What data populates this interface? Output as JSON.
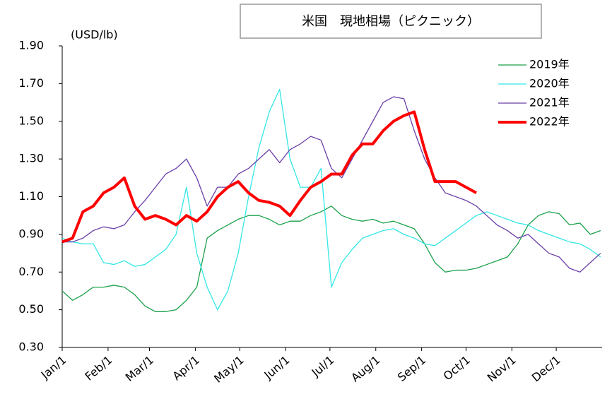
{
  "chart_data": {
    "type": "line",
    "title": "米国　現地相場（ピクニック）",
    "y_label": "(USD/lb)",
    "x": [
      0,
      7,
      14,
      21,
      28,
      35,
      42,
      49,
      56,
      63,
      70,
      77,
      84,
      91,
      98,
      105,
      112,
      119,
      126,
      133,
      140,
      147,
      154,
      161,
      168,
      175,
      182,
      189,
      196,
      203,
      210,
      217,
      224,
      231,
      238,
      245,
      252,
      259,
      266,
      273,
      280,
      287,
      294,
      301,
      308,
      315,
      322,
      329,
      336,
      343,
      350,
      357,
      364
    ],
    "xlim": [
      0,
      365
    ],
    "xticks": [
      {
        "value": 0,
        "label": "Jan/1"
      },
      {
        "value": 31,
        "label": "Feb/1"
      },
      {
        "value": 59,
        "label": "Mar/1"
      },
      {
        "value": 90,
        "label": "Apr/1"
      },
      {
        "value": 120,
        "label": "May/1"
      },
      {
        "value": 151,
        "label": "Jun/1"
      },
      {
        "value": 181,
        "label": "Jul/1"
      },
      {
        "value": 212,
        "label": "Aug/1"
      },
      {
        "value": 243,
        "label": "Sep/1"
      },
      {
        "value": 273,
        "label": "Oct/1"
      },
      {
        "value": 304,
        "label": "Nov/1"
      },
      {
        "value": 334,
        "label": "Dec/1"
      }
    ],
    "ylim": [
      0.3,
      1.9
    ],
    "yticks": [
      {
        "value": 0.3,
        "label": "0.30"
      },
      {
        "value": 0.5,
        "label": "0.50"
      },
      {
        "value": 0.7,
        "label": "0.70"
      },
      {
        "value": 0.9,
        "label": "0.90"
      },
      {
        "value": 1.1,
        "label": "1.10"
      },
      {
        "value": 1.3,
        "label": "1.30"
      },
      {
        "value": 1.5,
        "label": "1.50"
      },
      {
        "value": 1.7,
        "label": "1.70"
      },
      {
        "value": 1.9,
        "label": "1.90"
      }
    ],
    "grid": false,
    "legend": "upper right",
    "series": [
      {
        "name": "2019年",
        "color": "#1aa04a",
        "width": 1.3,
        "values": [
          0.6,
          0.55,
          0.58,
          0.62,
          0.62,
          0.63,
          0.62,
          0.58,
          0.52,
          0.49,
          0.49,
          0.5,
          0.55,
          0.62,
          0.88,
          0.92,
          0.95,
          0.98,
          1.0,
          1.0,
          0.98,
          0.95,
          0.97,
          0.97,
          1.0,
          1.02,
          1.05,
          1.0,
          0.98,
          0.97,
          0.98,
          0.96,
          0.97,
          0.95,
          0.93,
          0.85,
          0.75,
          0.7,
          0.71,
          0.71,
          0.72,
          0.74,
          0.76,
          0.78,
          0.85,
          0.95,
          1.0,
          1.02,
          1.01,
          0.95,
          0.96,
          0.9,
          0.92
        ]
      },
      {
        "name": "2020年",
        "color": "#33e6e6",
        "width": 1.3,
        "values": [
          0.88,
          0.86,
          0.85,
          0.85,
          0.75,
          0.74,
          0.76,
          0.73,
          0.74,
          0.78,
          0.82,
          0.9,
          1.15,
          0.8,
          0.62,
          0.5,
          0.6,
          0.8,
          1.1,
          1.36,
          1.55,
          1.67,
          1.3,
          1.15,
          1.15,
          1.25,
          0.62,
          0.75,
          0.82,
          0.88,
          0.9,
          0.92,
          0.93,
          0.9,
          0.88,
          0.85,
          0.84,
          0.88,
          0.92,
          0.96,
          1.0,
          1.02,
          1.0,
          0.98,
          0.96,
          0.95,
          0.92,
          0.9,
          0.88,
          0.86,
          0.85,
          0.82,
          0.78
        ]
      },
      {
        "name": "2021年",
        "color": "#6a3fa8",
        "width": 1.3,
        "values": [
          0.86,
          0.86,
          0.88,
          0.92,
          0.94,
          0.93,
          0.95,
          1.02,
          1.08,
          1.15,
          1.22,
          1.25,
          1.3,
          1.2,
          1.05,
          1.15,
          1.15,
          1.22,
          1.25,
          1.3,
          1.35,
          1.28,
          1.35,
          1.38,
          1.42,
          1.4,
          1.25,
          1.2,
          1.3,
          1.4,
          1.5,
          1.6,
          1.63,
          1.62,
          1.45,
          1.3,
          1.2,
          1.12,
          1.1,
          1.08,
          1.05,
          1.0,
          0.95,
          0.92,
          0.88,
          0.9,
          0.85,
          0.8,
          0.78,
          0.72,
          0.7,
          0.75,
          0.8
        ]
      },
      {
        "name": "2022年",
        "color": "#ff0000",
        "width": 4,
        "values": [
          0.86,
          0.88,
          1.02,
          1.05,
          1.12,
          1.15,
          1.2,
          1.05,
          0.98,
          1.0,
          0.98,
          0.95,
          1.0,
          0.97,
          1.02,
          1.1,
          1.15,
          1.18,
          1.12,
          1.08,
          1.07,
          1.05,
          1.0,
          1.08,
          1.15,
          1.18,
          1.22,
          1.22,
          1.32,
          1.38,
          1.38,
          1.45,
          1.5,
          1.53,
          1.55,
          1.35,
          1.18,
          1.18,
          1.18,
          1.15,
          1.12,
          null,
          null,
          null,
          null,
          null,
          null,
          null,
          null,
          null,
          null,
          null,
          null
        ]
      }
    ]
  }
}
